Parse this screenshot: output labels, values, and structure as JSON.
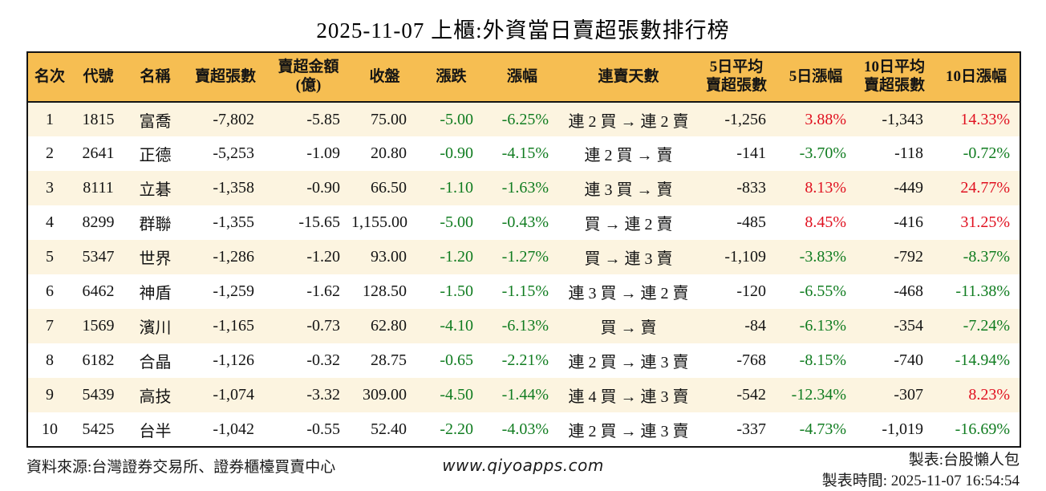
{
  "title": "2025-11-07 上櫃:外資當日賣超張數排行榜",
  "colors": {
    "header_bg": "#F6BE52",
    "stripe_bg": "#FCF4E0",
    "up_red": "#E01120",
    "down_green": "#107C20"
  },
  "table": {
    "headers": [
      "名次",
      "代號",
      "名稱",
      "賣超張數",
      "賣超金額\n(億)",
      "收盤",
      "漲跌",
      "漲幅",
      "連賣天數",
      "5日平均\n賣超張數",
      "5日漲幅",
      "10日平均\n賣超張數",
      "10日漲幅"
    ],
    "rows": [
      {
        "rank": "1",
        "code": "1815",
        "name": "富喬",
        "net_sell": "-7,802",
        "amount": "-5.85",
        "close": "75.00",
        "change": "-5.00",
        "change_pct": "-6.25%",
        "streak": "連 2 買 → 連 2 賣",
        "avg5": "-1,256",
        "pct5": "3.88%",
        "avg10": "-1,343",
        "pct10": "14.33%"
      },
      {
        "rank": "2",
        "code": "2641",
        "name": "正德",
        "net_sell": "-5,253",
        "amount": "-1.09",
        "close": "20.80",
        "change": "-0.90",
        "change_pct": "-4.15%",
        "streak": "連 2 買 → 賣",
        "avg5": "-141",
        "pct5": "-3.70%",
        "avg10": "-118",
        "pct10": "-0.72%"
      },
      {
        "rank": "3",
        "code": "8111",
        "name": "立碁",
        "net_sell": "-1,358",
        "amount": "-0.90",
        "close": "66.50",
        "change": "-1.10",
        "change_pct": "-1.63%",
        "streak": "連 3 買 → 賣",
        "avg5": "-833",
        "pct5": "8.13%",
        "avg10": "-449",
        "pct10": "24.77%"
      },
      {
        "rank": "4",
        "code": "8299",
        "name": "群聯",
        "net_sell": "-1,355",
        "amount": "-15.65",
        "close": "1,155.00",
        "change": "-5.00",
        "change_pct": "-0.43%",
        "streak": "買 → 連 2 賣",
        "avg5": "-485",
        "pct5": "8.45%",
        "avg10": "-416",
        "pct10": "31.25%"
      },
      {
        "rank": "5",
        "code": "5347",
        "name": "世界",
        "net_sell": "-1,286",
        "amount": "-1.20",
        "close": "93.00",
        "change": "-1.20",
        "change_pct": "-1.27%",
        "streak": "買 → 連 3 賣",
        "avg5": "-1,109",
        "pct5": "-3.83%",
        "avg10": "-792",
        "pct10": "-8.37%"
      },
      {
        "rank": "6",
        "code": "6462",
        "name": "神盾",
        "net_sell": "-1,259",
        "amount": "-1.62",
        "close": "128.50",
        "change": "-1.50",
        "change_pct": "-1.15%",
        "streak": "連 3 買 → 連 2 賣",
        "avg5": "-120",
        "pct5": "-6.55%",
        "avg10": "-468",
        "pct10": "-11.38%"
      },
      {
        "rank": "7",
        "code": "1569",
        "name": "濱川",
        "net_sell": "-1,165",
        "amount": "-0.73",
        "close": "62.80",
        "change": "-4.10",
        "change_pct": "-6.13%",
        "streak": "買 → 賣",
        "avg5": "-84",
        "pct5": "-6.13%",
        "avg10": "-354",
        "pct10": "-7.24%"
      },
      {
        "rank": "8",
        "code": "6182",
        "name": "合晶",
        "net_sell": "-1,126",
        "amount": "-0.32",
        "close": "28.75",
        "change": "-0.65",
        "change_pct": "-2.21%",
        "streak": "連 2 買 → 連 3 賣",
        "avg5": "-768",
        "pct5": "-8.15%",
        "avg10": "-740",
        "pct10": "-14.94%"
      },
      {
        "rank": "9",
        "code": "5439",
        "name": "高技",
        "net_sell": "-1,074",
        "amount": "-3.32",
        "close": "309.00",
        "change": "-4.50",
        "change_pct": "-1.44%",
        "streak": "連 4 買 → 連 3 賣",
        "avg5": "-542",
        "pct5": "-12.34%",
        "avg10": "-307",
        "pct10": "8.23%"
      },
      {
        "rank": "10",
        "code": "5425",
        "name": "台半",
        "net_sell": "-1,042",
        "amount": "-0.55",
        "close": "52.40",
        "change": "-2.20",
        "change_pct": "-4.03%",
        "streak": "連 2 買 → 連 3 賣",
        "avg5": "-337",
        "pct5": "-4.73%",
        "avg10": "-1,019",
        "pct10": "-16.69%"
      }
    ]
  },
  "footer": {
    "source": "資料來源:台灣證券交易所、證券櫃檯買賣中心",
    "website": "www.qiyoapps.com",
    "maker": "製表:台股懶人包",
    "made_time": "製表時間: 2025-11-07 16:54:54"
  }
}
